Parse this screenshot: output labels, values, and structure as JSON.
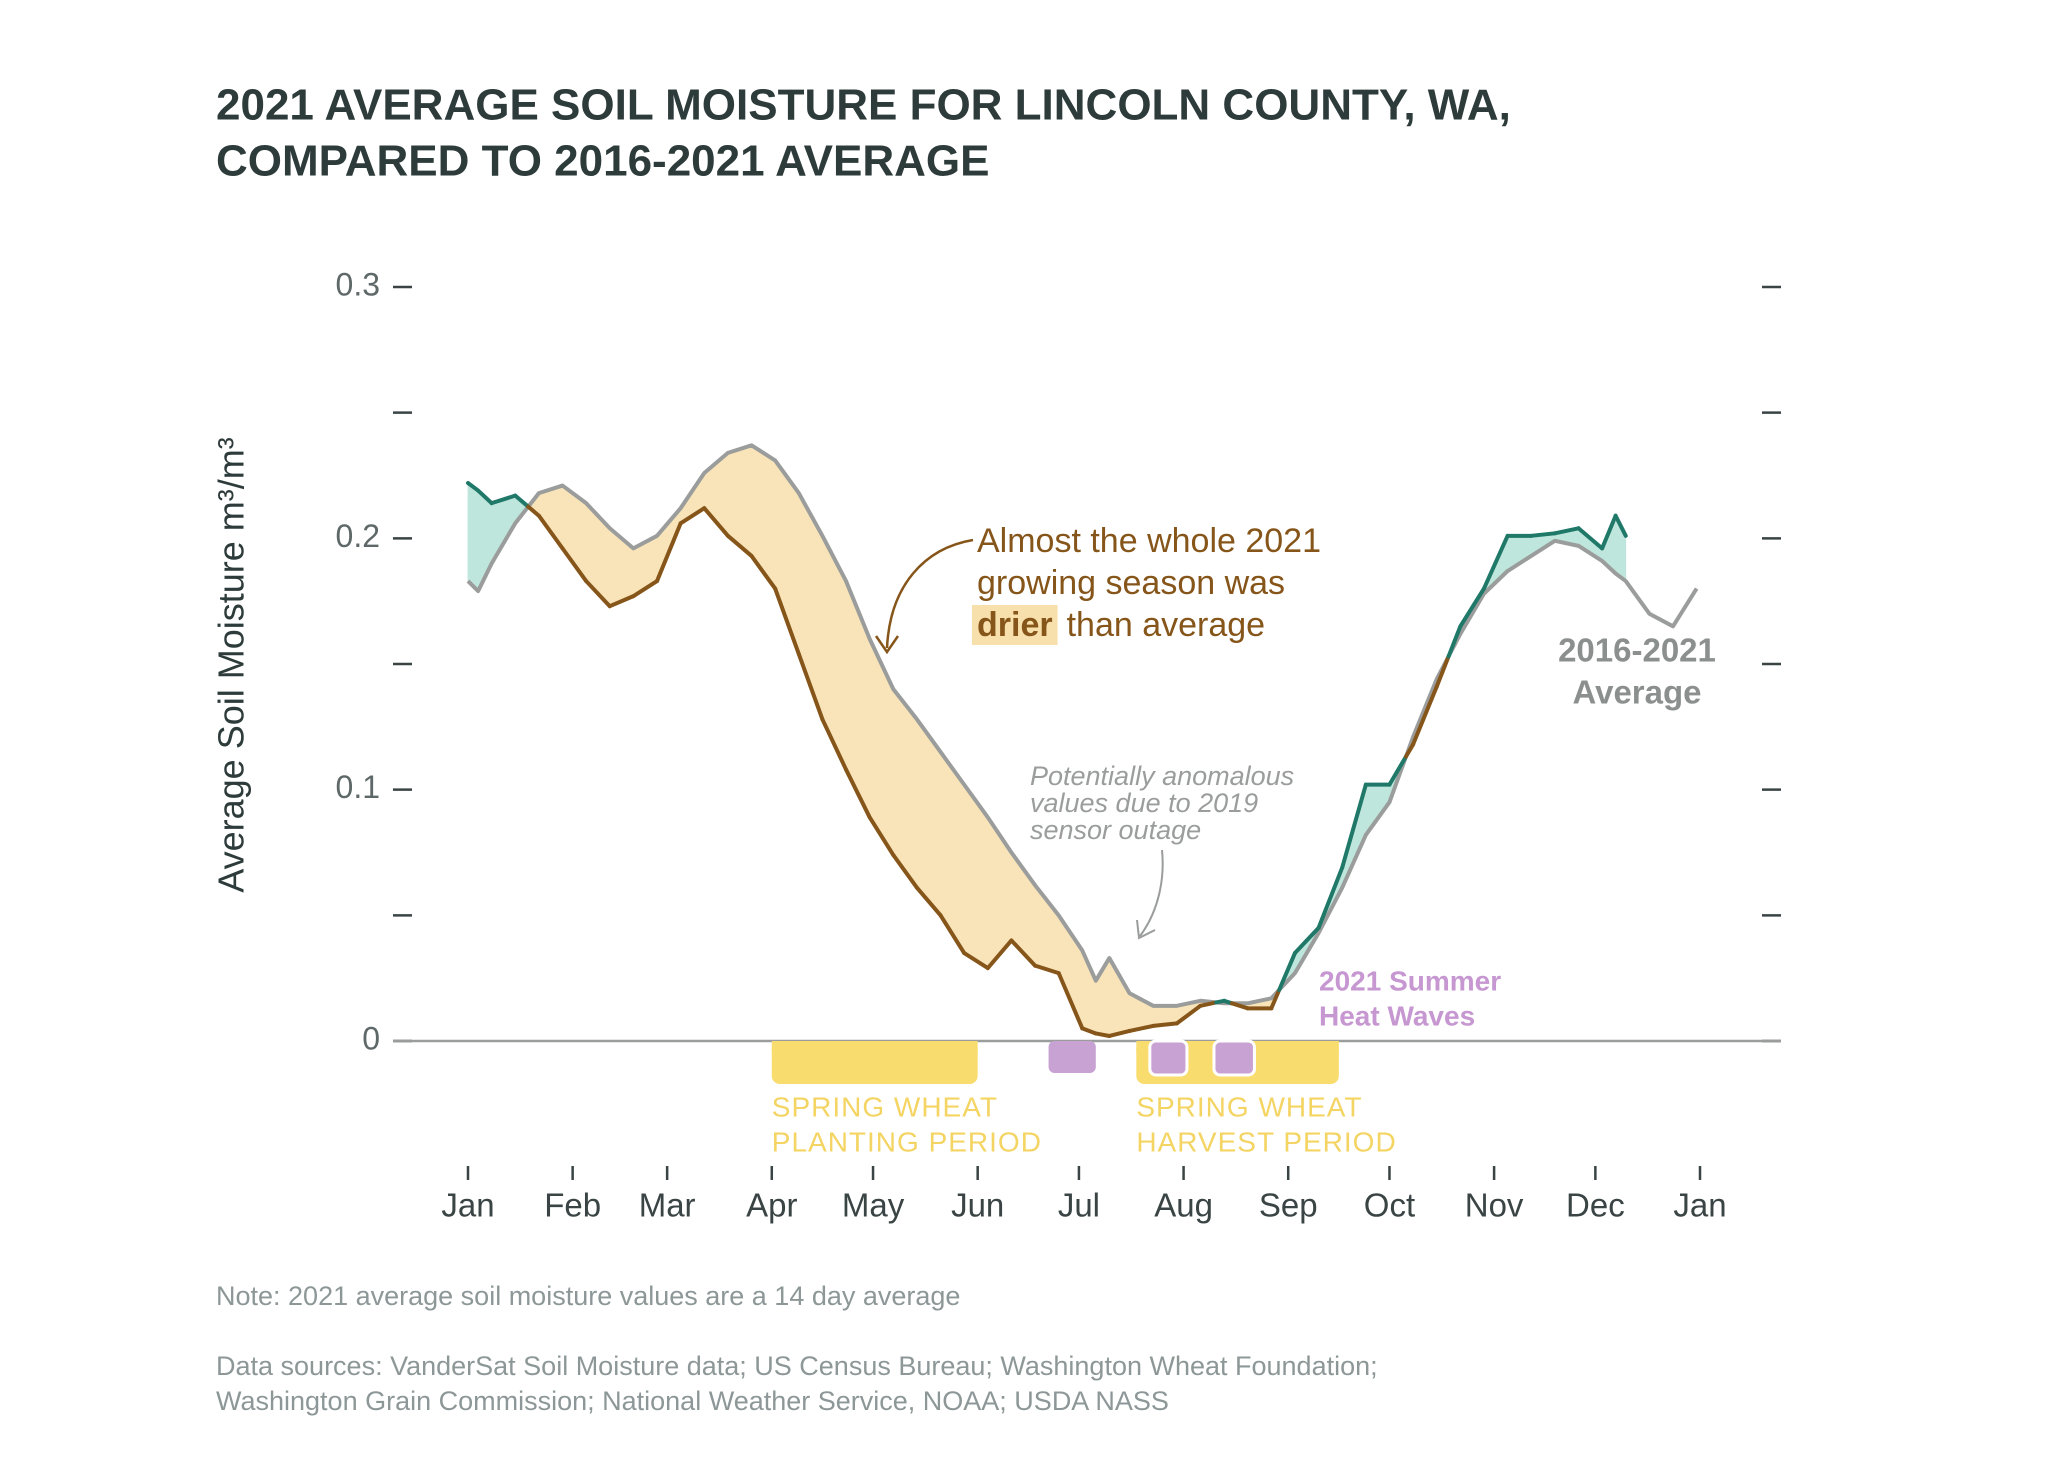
{
  "chart_data": {
    "type": "line",
    "title": [
      "2021 AVERAGE SOIL MOISTURE FOR LINCOLN COUNTY, WA,",
      "COMPARED TO 2016-2021 AVERAGE"
    ],
    "y_label": "Average Soil Moisture m³/m³",
    "xlim": [
      0,
      365
    ],
    "xticks": [
      {
        "value": 0,
        "label": "Jan"
      },
      {
        "value": 31,
        "label": "Feb"
      },
      {
        "value": 59,
        "label": "Mar"
      },
      {
        "value": 90,
        "label": "Apr"
      },
      {
        "value": 120,
        "label": "May"
      },
      {
        "value": 151,
        "label": "Jun"
      },
      {
        "value": 181,
        "label": "Jul"
      },
      {
        "value": 212,
        "label": "Aug"
      },
      {
        "value": 243,
        "label": "Sep"
      },
      {
        "value": 273,
        "label": "Oct"
      },
      {
        "value": 304,
        "label": "Nov"
      },
      {
        "value": 334,
        "label": "Dec"
      },
      {
        "value": 365,
        "label": "Jan"
      }
    ],
    "ylim": [
      0,
      0.3
    ],
    "yticks": [
      0,
      {
        "value": 0.05,
        "label": null
      },
      0.1,
      {
        "value": 0.15,
        "label": null
      },
      0.2,
      {
        "value": 0.25,
        "label": null
      },
      0.3
    ],
    "x": [
      0,
      3,
      7,
      14,
      21,
      28,
      35,
      42,
      49,
      56,
      63,
      70,
      77,
      84,
      91,
      98,
      105,
      112,
      119,
      126,
      133,
      140,
      147,
      154,
      161,
      168,
      175,
      182,
      186,
      190,
      196,
      203,
      210,
      217,
      224,
      231,
      238,
      245,
      252,
      259,
      266,
      273,
      280,
      287,
      294,
      301,
      308,
      315,
      322,
      329,
      336,
      340,
      343,
      350,
      357,
      364
    ],
    "series": [
      {
        "color_above": "#1f7868",
        "color_below": "#86551a",
        "values": [
          0.222,
          0.219,
          0.214,
          0.217,
          0.209,
          0.196,
          0.183,
          0.173,
          0.177,
          0.183,
          0.206,
          0.212,
          0.201,
          0.193,
          0.18,
          0.154,
          0.128,
          0.108,
          0.089,
          0.074,
          0.061,
          0.05,
          0.035,
          0.029,
          0.04,
          0.03,
          0.027,
          0.005,
          0.003,
          0.002,
          0.004,
          0.006,
          0.007,
          0.014,
          0.016,
          0.013,
          0.013,
          0.035,
          0.045,
          0.069,
          0.102,
          0.102,
          0.118,
          0.141,
          0.165,
          0.18,
          0.201,
          0.201,
          0.202,
          0.204,
          0.196,
          0.209,
          0.201,
          null,
          null,
          null
        ]
      },
      {
        "label": [
          "2016-2021",
          "Average"
        ],
        "color": "#9a9d9c",
        "values": [
          0.183,
          0.179,
          0.19,
          0.206,
          0.218,
          0.221,
          0.214,
          0.204,
          0.196,
          0.201,
          0.212,
          0.226,
          0.234,
          0.237,
          0.231,
          0.218,
          0.201,
          0.183,
          0.16,
          0.14,
          0.128,
          0.115,
          0.102,
          0.089,
          0.075,
          0.062,
          0.05,
          0.036,
          0.024,
          0.033,
          0.019,
          0.014,
          0.014,
          0.016,
          0.015,
          0.015,
          0.017,
          0.027,
          0.043,
          0.061,
          0.082,
          0.095,
          0.121,
          0.144,
          0.162,
          0.178,
          0.187,
          0.193,
          0.199,
          0.197,
          0.191,
          0.186,
          0.183,
          0.17,
          0.165,
          0.18
        ]
      }
    ],
    "fill_above": "#bfe6dc",
    "fill_below": "#f8e4b8",
    "periods": [
      {
        "label": [
          "SPRING WHEAT",
          "PLANTING PERIOD"
        ],
        "start": 90,
        "end": 151,
        "color": "#f9dc6e"
      },
      {
        "label": [
          "SPRING WHEAT",
          "HARVEST PERIOD"
        ],
        "start": 198,
        "end": 258,
        "color": "#f9dc6e"
      }
    ],
    "heat_waves": {
      "label": [
        "2021 Summer",
        "Heat Waves"
      ],
      "color": "#c9a2d4",
      "ranges": [
        {
          "start": 172,
          "end": 186
        },
        {
          "start": 202,
          "end": 213
        },
        {
          "start": 221,
          "end": 233
        }
      ]
    },
    "annotation_dry": {
      "lines": [
        "Almost the whole 2021",
        "growing season was"
      ],
      "highlight": "drier",
      "after": "than average"
    },
    "annotation_sensor": [
      "Potentially anomalous",
      "values due to 2019",
      "sensor outage"
    ],
    "note": "Note: 2021 average soil moisture values are a 14 day average",
    "sources": [
      "Data sources: VanderSat Soil Moisture data; US Census Bureau; Washington Wheat Foundation;",
      "Washington Grain Commission; National Weather Service, NOAA; USDA NASS"
    ]
  }
}
